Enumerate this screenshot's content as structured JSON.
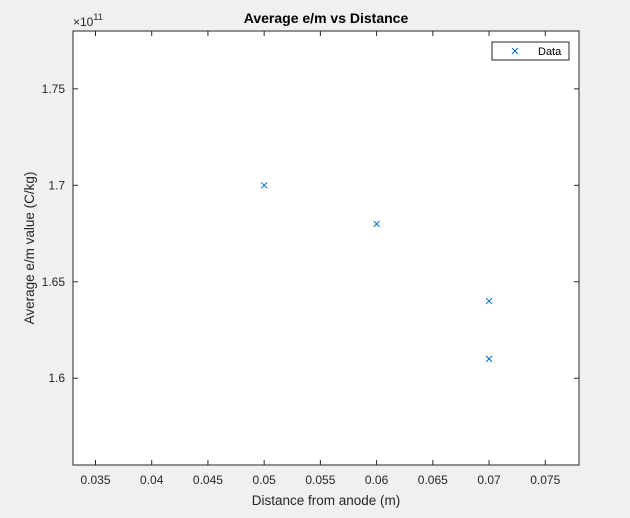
{
  "chart_data": {
    "type": "scatter",
    "title": "Average e/m vs Distance",
    "xlabel": "Distance from anode (m)",
    "ylabel": "Average e/m value (C/kg)",
    "y_exponent_base": "×10",
    "y_exponent_power": "11",
    "xlim": [
      0.033,
      0.078
    ],
    "ylim": [
      1.555,
      1.78
    ],
    "xticks": [
      0.035,
      0.04,
      0.045,
      0.05,
      0.055,
      0.06,
      0.065,
      0.07,
      0.075
    ],
    "xtick_labels": [
      "0.035",
      "0.04",
      "0.045",
      "0.05",
      "0.055",
      "0.06",
      "0.065",
      "0.07",
      "0.075"
    ],
    "yticks": [
      1.6,
      1.65,
      1.7,
      1.75
    ],
    "ytick_labels": [
      "1.6",
      "1.65",
      "1.7",
      "1.75"
    ],
    "grid": false,
    "legend_position": "top-right",
    "series": [
      {
        "name": "Data",
        "marker": "x",
        "color": "#0072BD",
        "x": [
          0.05,
          0.06,
          0.07,
          0.07
        ],
        "y": [
          1.7,
          1.68,
          1.64,
          1.61
        ]
      }
    ]
  }
}
